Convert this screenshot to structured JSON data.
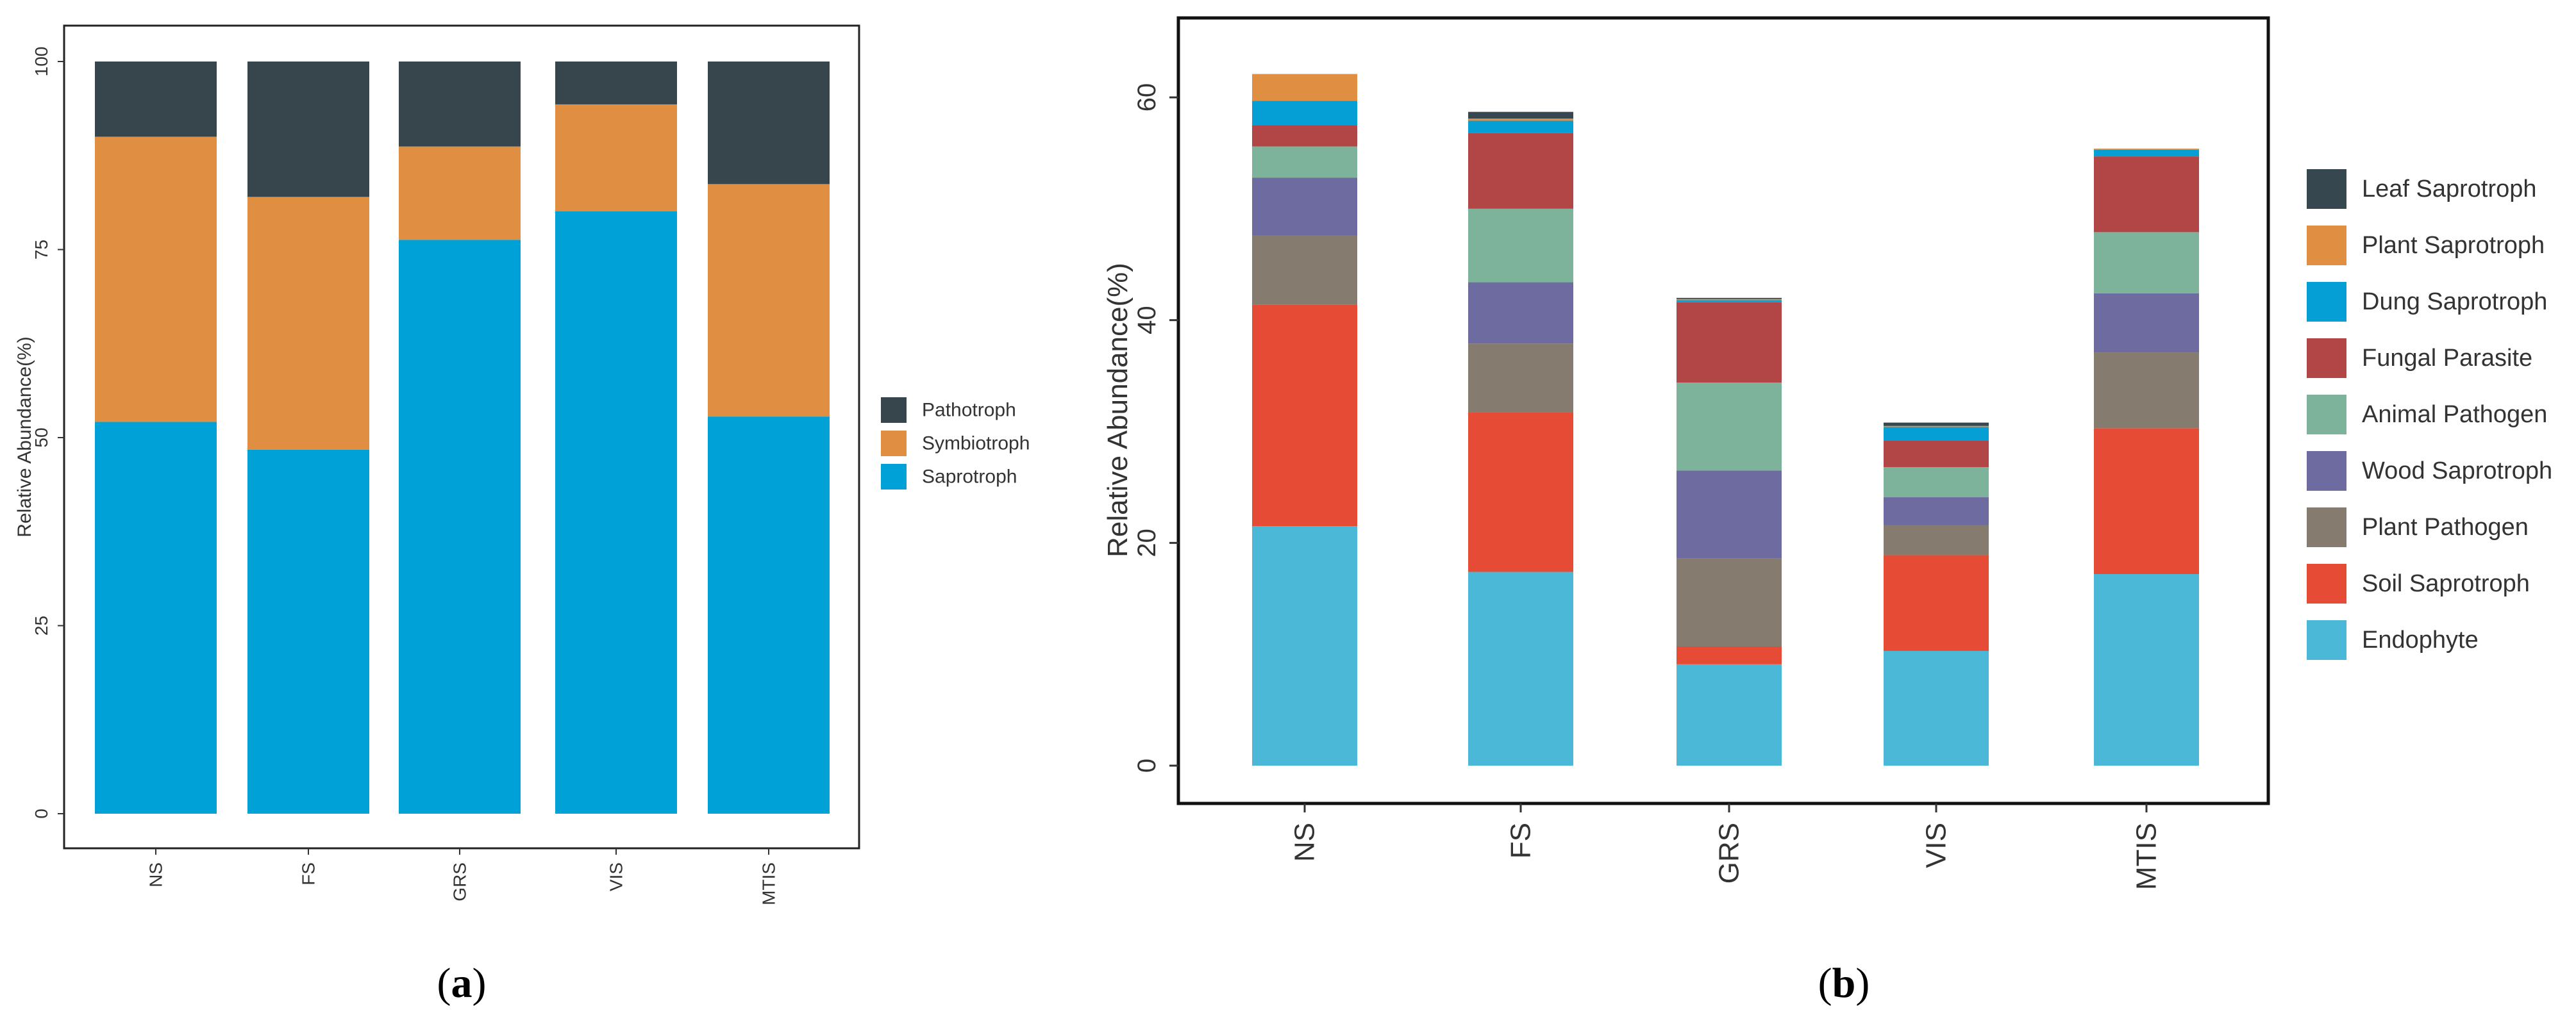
{
  "figure_labels": {
    "a": "a",
    "b": "b",
    "open": "(",
    "close": ")"
  },
  "chart_data": [
    {
      "id": "a",
      "type": "bar",
      "stacked": true,
      "categories": [
        "NS",
        "FS",
        "GRS",
        "VIS",
        "MTIS"
      ],
      "ylabel": "Relative Abundance(%)",
      "xlabel": "",
      "ylim": [
        0,
        100
      ],
      "yticks": [
        0,
        25,
        50,
        75,
        100
      ],
      "grid": false,
      "legend": "right",
      "legend_order": [
        "Pathotroph",
        "Symbiotroph",
        "Saprotroph"
      ],
      "series": [
        {
          "name": "Saprotroph",
          "color": "#00a1d6",
          "values": [
            52.1,
            48.4,
            76.3,
            80.1,
            52.8
          ]
        },
        {
          "name": "Symbiotroph",
          "color": "#e08e42",
          "values": [
            37.9,
            33.6,
            12.4,
            14.2,
            30.9
          ]
        },
        {
          "name": "Pathotroph",
          "color": "#37464c",
          "values": [
            10.0,
            18.0,
            11.3,
            5.7,
            16.3
          ]
        }
      ]
    },
    {
      "id": "b",
      "type": "bar",
      "stacked": true,
      "categories": [
        "NS",
        "FS",
        "GRS",
        "VIS",
        "MTIS"
      ],
      "ylabel": "Relative Abundance(%)",
      "xlabel": "",
      "ylim": [
        -3,
        65
      ],
      "yticks": [
        0,
        20,
        40,
        60
      ],
      "grid": false,
      "legend": "right",
      "legend_order": [
        "Leaf Saprotroph",
        "Plant Saprotroph",
        "Dung Saprotroph",
        "Fungal Parasite",
        "Animal Pathogen",
        "Wood Saprotroph",
        "Plant Pathogen",
        "Soil Saprotroph",
        "Endophyte"
      ],
      "series": [
        {
          "name": "Endophyte",
          "color": "#4ab8d6",
          "values": [
            21.5,
            17.4,
            9.1,
            10.3,
            17.2
          ]
        },
        {
          "name": "Soil Saprotroph",
          "color": "#e54b35",
          "values": [
            19.9,
            14.3,
            1.6,
            8.6,
            13.1
          ]
        },
        {
          "name": "Plant Pathogen",
          "color": "#857b6e",
          "values": [
            6.2,
            6.2,
            7.9,
            2.7,
            6.8
          ]
        },
        {
          "name": "Wood Saprotroph",
          "color": "#6d6ba0",
          "values": [
            5.2,
            5.5,
            7.9,
            2.5,
            5.3
          ]
        },
        {
          "name": "Animal Pathogen",
          "color": "#7cb39a",
          "values": [
            2.8,
            6.6,
            7.9,
            2.7,
            5.5
          ]
        },
        {
          "name": "Fungal Parasite",
          "color": "#b24545",
          "values": [
            1.9,
            6.8,
            7.2,
            2.4,
            6.8
          ]
        },
        {
          "name": "Dung Saprotroph",
          "color": "#069fd5",
          "values": [
            2.2,
            1.1,
            0.2,
            1.2,
            0.6
          ]
        },
        {
          "name": "Plant Saprotroph",
          "color": "#e08e42",
          "values": [
            2.4,
            0.2,
            0.1,
            0.1,
            0.1
          ]
        },
        {
          "name": "Leaf Saprotroph",
          "color": "#37474f",
          "values": [
            0.0,
            0.6,
            0.1,
            0.3,
            0.0
          ]
        }
      ]
    }
  ]
}
